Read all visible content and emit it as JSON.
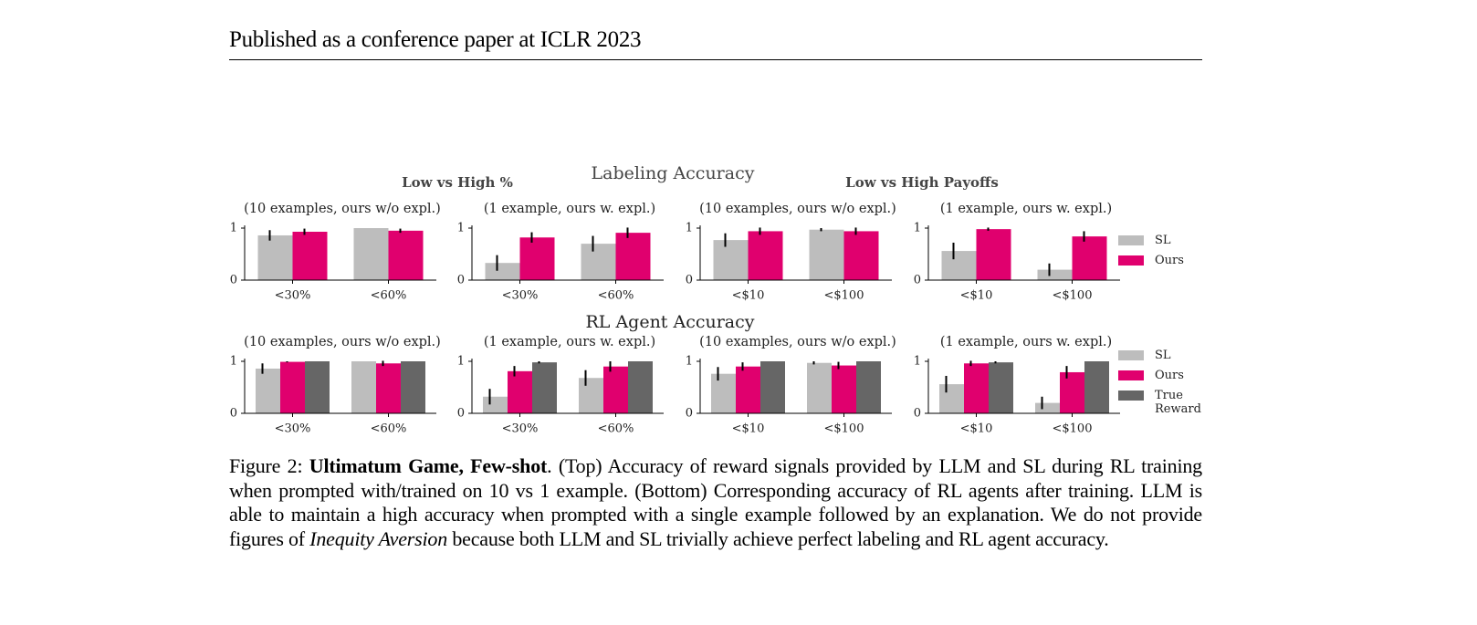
{
  "header": "Published as a conference paper at ICLR 2023",
  "figure": {
    "title_top": "Labeling Accuracy",
    "group_left": "Low vs High %",
    "group_right": "Low vs High Payoffs",
    "title_bottom": "RL Agent Accuracy"
  },
  "chart_data": [
    {
      "type": "bar",
      "title": "(10 examples, ours w/o expl.)",
      "categories": [
        "<30%",
        "<60%"
      ],
      "ylim": [
        0,
        1
      ],
      "yticks": [
        0,
        1
      ],
      "series": [
        {
          "name": "SL",
          "color": "#bdbdbd",
          "values": [
            0.86,
            1.0
          ],
          "errors": [
            0.1,
            0
          ]
        },
        {
          "name": "Ours",
          "color": "#e0006e",
          "values": [
            0.93,
            0.95
          ],
          "errors": [
            0.06,
            0.04
          ]
        }
      ]
    },
    {
      "type": "bar",
      "title": "(1 example, ours w. expl.)",
      "categories": [
        "<30%",
        "<60%"
      ],
      "ylim": [
        0,
        1
      ],
      "yticks": [
        0,
        1
      ],
      "series": [
        {
          "name": "SL",
          "color": "#bdbdbd",
          "values": [
            0.33,
            0.7
          ],
          "errors": [
            0.15,
            0.15
          ]
        },
        {
          "name": "Ours",
          "color": "#e0006e",
          "values": [
            0.82,
            0.91
          ],
          "errors": [
            0.1,
            0.1
          ]
        }
      ]
    },
    {
      "type": "bar",
      "title": "(10 examples, ours w/o expl.)",
      "categories": [
        "<$10",
        "<$100"
      ],
      "ylim": [
        0,
        1
      ],
      "yticks": [
        0,
        1
      ],
      "series": [
        {
          "name": "SL",
          "color": "#bdbdbd",
          "values": [
            0.77,
            0.97
          ],
          "errors": [
            0.13,
            0.03
          ]
        },
        {
          "name": "Ours",
          "color": "#e0006e",
          "values": [
            0.94,
            0.94
          ],
          "errors": [
            0.07,
            0.07
          ]
        }
      ]
    },
    {
      "type": "bar",
      "title": "(1 example, ours w. expl.)",
      "categories": [
        "<$10",
        "<$100"
      ],
      "ylim": [
        0,
        1
      ],
      "yticks": [
        0,
        1
      ],
      "legend": true,
      "series": [
        {
          "name": "SL",
          "color": "#bdbdbd",
          "values": [
            0.56,
            0.2
          ],
          "errors": [
            0.16,
            0.12
          ]
        },
        {
          "name": "Ours",
          "color": "#e0006e",
          "values": [
            0.98,
            0.84
          ],
          "errors": [
            0.03,
            0.1
          ]
        }
      ]
    },
    {
      "type": "bar",
      "title": "(10 examples, ours w/o expl.)",
      "categories": [
        "<30%",
        "<60%"
      ],
      "ylim": [
        0,
        1
      ],
      "yticks": [
        0,
        1
      ],
      "series": [
        {
          "name": "SL",
          "color": "#bdbdbd",
          "values": [
            0.86,
            1.0
          ],
          "errors": [
            0.1,
            0
          ]
        },
        {
          "name": "Ours",
          "color": "#e0006e",
          "values": [
            0.99,
            0.96
          ],
          "errors": [
            0.01,
            0.05
          ]
        },
        {
          "name": "True Reward",
          "color": "#666666",
          "values": [
            1.0,
            1.0
          ],
          "errors": [
            0,
            0
          ]
        }
      ]
    },
    {
      "type": "bar",
      "title": "(1 example, ours w. expl.)",
      "categories": [
        "<30%",
        "<60%"
      ],
      "ylim": [
        0,
        1
      ],
      "yticks": [
        0,
        1
      ],
      "series": [
        {
          "name": "SL",
          "color": "#bdbdbd",
          "values": [
            0.32,
            0.68
          ],
          "errors": [
            0.15,
            0.15
          ]
        },
        {
          "name": "Ours",
          "color": "#e0006e",
          "values": [
            0.81,
            0.9
          ],
          "errors": [
            0.1,
            0.1
          ]
        },
        {
          "name": "True Reward",
          "color": "#666666",
          "values": [
            0.98,
            1.0
          ],
          "errors": [
            0.02,
            0
          ]
        }
      ]
    },
    {
      "type": "bar",
      "title": "(10 examples, ours w/o expl.)",
      "categories": [
        "<$10",
        "<$100"
      ],
      "ylim": [
        0,
        1
      ],
      "yticks": [
        0,
        1
      ],
      "series": [
        {
          "name": "SL",
          "color": "#bdbdbd",
          "values": [
            0.76,
            0.97
          ],
          "errors": [
            0.13,
            0.03
          ]
        },
        {
          "name": "Ours",
          "color": "#e0006e",
          "values": [
            0.9,
            0.92
          ],
          "errors": [
            0.08,
            0.07
          ]
        },
        {
          "name": "True Reward",
          "color": "#666666",
          "values": [
            1.0,
            1.0
          ],
          "errors": [
            0,
            0
          ]
        }
      ]
    },
    {
      "type": "bar",
      "title": "(1 example, ours w. expl.)",
      "categories": [
        "<$10",
        "<$100"
      ],
      "ylim": [
        0,
        1
      ],
      "yticks": [
        0,
        1
      ],
      "legend": true,
      "series": [
        {
          "name": "SL",
          "color": "#bdbdbd",
          "values": [
            0.56,
            0.2
          ],
          "errors": [
            0.16,
            0.12
          ]
        },
        {
          "name": "Ours",
          "color": "#e0006e",
          "values": [
            0.96,
            0.79
          ],
          "errors": [
            0.05,
            0.12
          ]
        },
        {
          "name": "True Reward",
          "color": "#666666",
          "values": [
            0.98,
            1.0
          ],
          "errors": [
            0.02,
            0
          ]
        }
      ]
    }
  ],
  "caption": {
    "label": "Figure 2:",
    "bold": "Ultimatum Game, Few-shot",
    "text1": ". (Top) Accuracy of reward signals provided by LLM and SL during RL training when prompted with/trained on 10 vs 1 example. (Bottom) Corresponding accuracy of RL agents after training. LLM is able to maintain a high accuracy when prompted with a single example followed by an explanation. We do not provide figures of",
    "italic": "Inequity Aversion",
    "text2": "because both LLM and SL trivially achieve perfect labeling and RL agent accuracy."
  }
}
